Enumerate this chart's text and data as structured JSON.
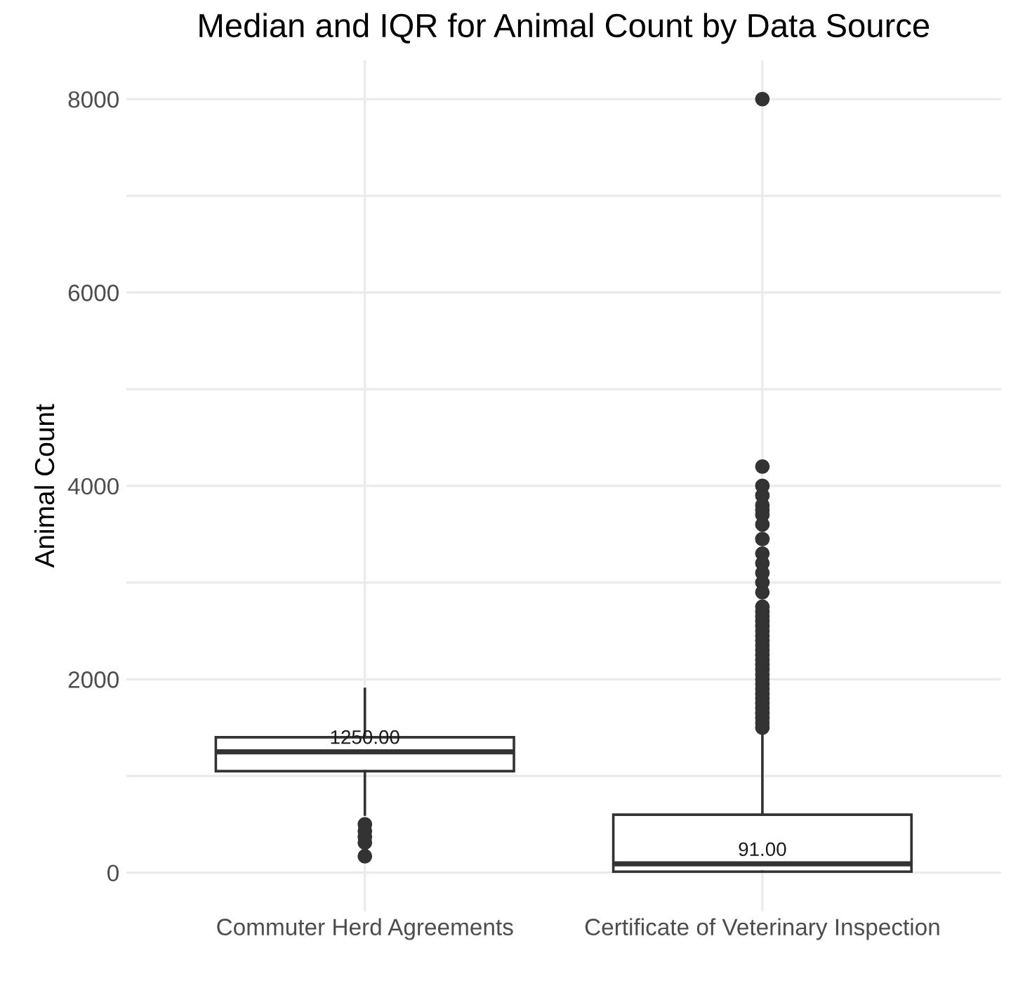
{
  "chart_data": {
    "type": "box",
    "title": "Median and IQR for Animal Count by Data Source",
    "ylabel": "Animal Count",
    "categories": [
      "Commuter Herd Agreements",
      "Certificate of Veterinary Inspection"
    ],
    "boxes": [
      {
        "low": 600,
        "q1": 1050,
        "median": 1250,
        "q3": 1400,
        "high": 1900,
        "outliers": [
          500,
          430,
          370,
          310,
          170
        ]
      },
      {
        "low": 10,
        "q1": 10,
        "median": 91,
        "q3": 600,
        "high": 1450,
        "outliers": [
          1500,
          1550,
          1600,
          1650,
          1700,
          1750,
          1800,
          1850,
          1900,
          1950,
          2000,
          2050,
          2100,
          2150,
          2200,
          2250,
          2300,
          2350,
          2400,
          2450,
          2500,
          2550,
          2600,
          2650,
          2700,
          2750,
          2900,
          3000,
          3100,
          3200,
          3300,
          3450,
          3600,
          3700,
          3750,
          3800,
          3900,
          4000,
          4200,
          8000
        ]
      }
    ],
    "annotations": [
      {
        "text": "1250.00",
        "x": "Commuter Herd Agreements",
        "y": 1250
      },
      {
        "text": "91.00",
        "x": "Certificate of Veterinary Inspection",
        "y": 91
      }
    ],
    "ylim": [
      -400,
      8400
    ],
    "yticks": [
      0,
      {
        "value": 1000,
        "label": null
      },
      2000,
      {
        "value": 3000,
        "label": null
      },
      4000,
      {
        "value": 5000,
        "label": null
      },
      6000,
      {
        "value": 7000,
        "label": null
      },
      8000
    ],
    "grid": true
  }
}
